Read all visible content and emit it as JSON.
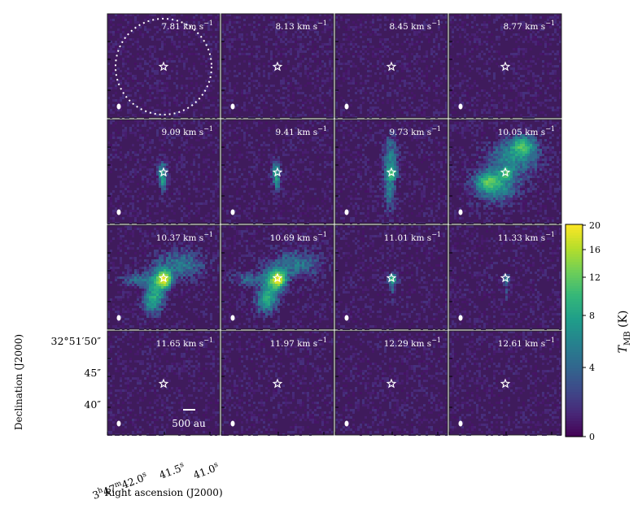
{
  "chart_data": {
    "type": "heatmap",
    "description_kind": "channel-map",
    "panels": [
      {
        "velocity_label": "7.81 km s",
        "superscript": "−1",
        "emission": "none",
        "show_primary_beam": true
      },
      {
        "velocity_label": "8.13 km s",
        "superscript": "−1",
        "emission": "none"
      },
      {
        "velocity_label": "8.45 km s",
        "superscript": "−1",
        "emission": "none"
      },
      {
        "velocity_label": "8.77 km s",
        "superscript": "−1",
        "emission": "none"
      },
      {
        "velocity_label": "9.09 km s",
        "superscript": "−1",
        "emission": "weak"
      },
      {
        "velocity_label": "9.41 km s",
        "superscript": "−1",
        "emission": "weak"
      },
      {
        "velocity_label": "9.73 km s",
        "superscript": "−1",
        "emission": "moderate"
      },
      {
        "velocity_label": "10.05 km s",
        "superscript": "−1",
        "emission": "extended"
      },
      {
        "velocity_label": "10.37 km s",
        "superscript": "−1",
        "emission": "strong"
      },
      {
        "velocity_label": "10.69 km s",
        "superscript": "−1",
        "emission": "strong"
      },
      {
        "velocity_label": "11.01 km s",
        "superscript": "−1",
        "emission": "compact"
      },
      {
        "velocity_label": "11.33 km s",
        "superscript": "−1",
        "emission": "faint"
      },
      {
        "velocity_label": "11.65 km s",
        "superscript": "−1",
        "emission": "none",
        "show_scale_bar": true
      },
      {
        "velocity_label": "11.97 km s",
        "superscript": "−1",
        "emission": "none"
      },
      {
        "velocity_label": "12.29 km s",
        "superscript": "−1",
        "emission": "none"
      },
      {
        "velocity_label": "12.61 km s",
        "superscript": "−1",
        "emission": "none"
      }
    ],
    "scale_bar_label": "500 au",
    "ylabel": "Declination (J2000)",
    "xlabel": "Right ascension (J2000)",
    "dec_ticks": [
      {
        "main": "32°51′50″",
        "offset_arcsec": 5
      },
      {
        "main": "45″",
        "offset_arcsec": 0
      },
      {
        "main": "40″",
        "offset_arcsec": -5
      }
    ],
    "ra_ticks": [
      {
        "h": "3",
        "m": "47",
        "s": "42.0",
        "unit_s": "s"
      },
      {
        "s": "41.5",
        "unit_s": "s"
      },
      {
        "s": "41.0",
        "unit_s": "s"
      }
    ],
    "colorbar": {
      "label": "T",
      "label_sub": "MB",
      "unit": "(K)",
      "ticks": [
        0,
        4,
        8,
        12,
        16,
        20
      ],
      "vmin": 0,
      "vmax": 20,
      "colormap": "viridis"
    },
    "grid": false,
    "layout": "4x4"
  },
  "colors": {
    "viridis": [
      "#440154",
      "#482878",
      "#3e4989",
      "#31688e",
      "#26828e",
      "#1f9e89",
      "#35b779",
      "#6ece58",
      "#b5de2b",
      "#fde725"
    ],
    "background_panel": "#3f1b5c",
    "marker": "#ffffff"
  }
}
